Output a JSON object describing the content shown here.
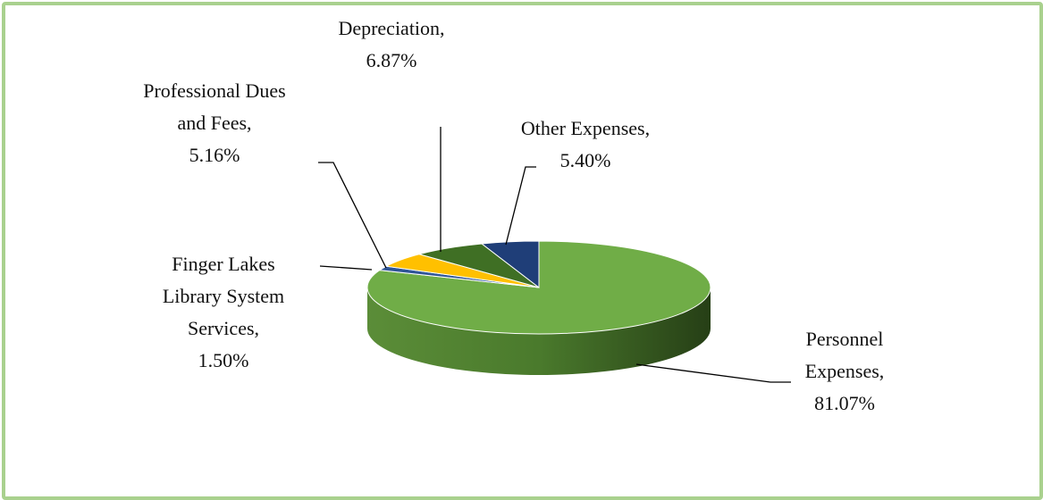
{
  "chart_data": {
    "type": "pie",
    "categories": [
      "Personnel Expenses,",
      "Finger Lakes Library System Services,",
      "Professional Dues and Fees,",
      "Depreciation,",
      "Other Expenses,"
    ],
    "values": [
      81.07,
      1.5,
      5.16,
      6.87,
      5.4
    ],
    "value_labels": [
      "81.07%",
      "1.50%",
      "5.16%",
      "6.87%",
      "5.40%"
    ],
    "colors": [
      "#70ad47",
      "#2f5597",
      "#ffc000",
      "#3f6f24",
      "#1f3e78"
    ]
  }
}
